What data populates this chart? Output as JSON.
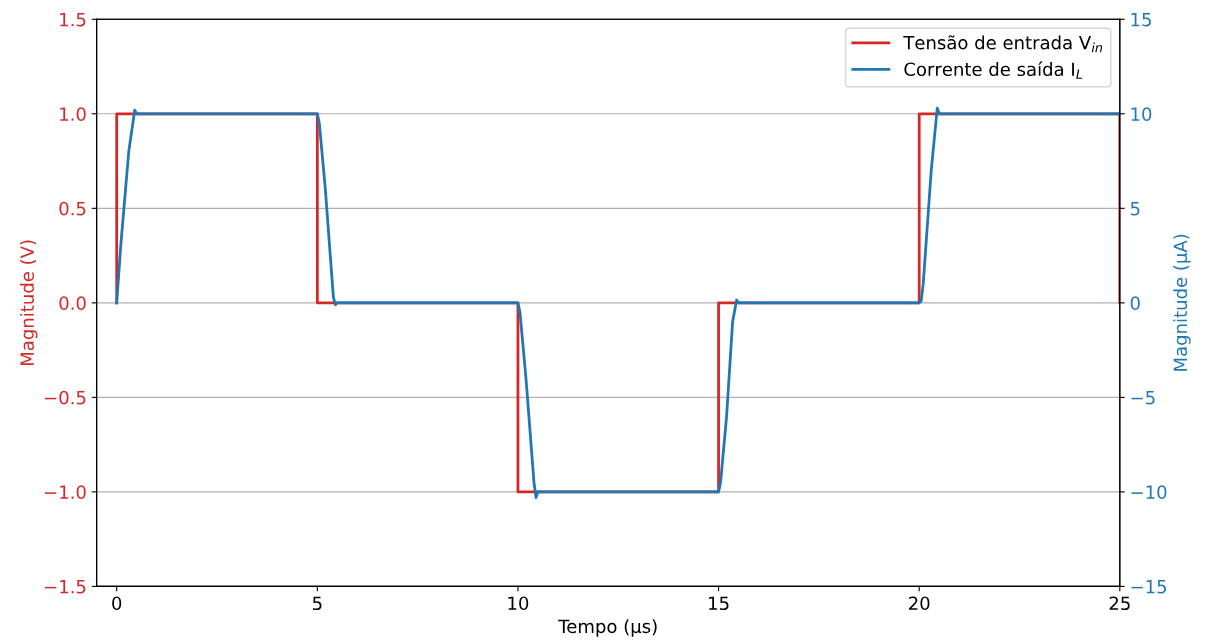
{
  "chart_data": {
    "type": "line",
    "xlabel": "Tempo (µs)",
    "ylabel": "Magnitude (V)",
    "y2label": "Magnitude (µA)",
    "xlim": [
      -0.5,
      25
    ],
    "xticks": [
      0,
      5,
      10,
      15,
      20,
      25
    ],
    "ylim": [
      -1.5,
      1.5
    ],
    "yticks": [
      {
        "value": -1.5,
        "label": "−1.5"
      },
      {
        "value": -1.0,
        "label": "−1.0"
      },
      {
        "value": -0.5,
        "label": "−0.5"
      },
      {
        "value": 0,
        "label": "0.0"
      },
      {
        "value": 0.5,
        "label": "0.5"
      },
      {
        "value": 1.0,
        "label": "1.0"
      },
      {
        "value": 1.5,
        "label": "1.5"
      }
    ],
    "y2lim": [
      -15,
      15
    ],
    "y2ticks": [
      {
        "value": -15,
        "label": "−15"
      },
      {
        "value": -10,
        "label": "−10"
      },
      {
        "value": -5,
        "label": "−5"
      },
      0,
      5,
      10,
      15
    ],
    "grid": "y",
    "legend": "top right",
    "series": [
      {
        "name": "Tensão de entrada V$_{in}$",
        "type": "step",
        "color": "#d62728",
        "x": [
          0,
          0,
          5,
          10,
          15,
          20,
          25
        ],
        "values": [
          0,
          1,
          0,
          -1,
          0,
          1,
          0
        ]
      },
      {
        "name": "Corrente de saída I$_{L}$",
        "type": "line",
        "axis": "y2",
        "color": "#1f77b4",
        "x": [
          0,
          0.1,
          0.3,
          0.45,
          0.5,
          0.55,
          5,
          5.05,
          5.2,
          5.4,
          5.45,
          5.5,
          10,
          10.05,
          10.2,
          10.4,
          10.45,
          10.5,
          15,
          15.05,
          15.2,
          15.35,
          15.45,
          15.5,
          20,
          20.05,
          20.1,
          20.3,
          20.45,
          20.5,
          25
        ],
        "values": [
          0,
          3,
          8,
          10.2,
          10,
          10,
          10,
          9.5,
          6,
          0.3,
          -0.1,
          0,
          0,
          -0.5,
          -4,
          -9.5,
          -10.3,
          -10,
          -10,
          -9.5,
          -6,
          -1,
          0.15,
          0,
          0,
          0.1,
          1,
          7,
          10.3,
          10,
          10
        ]
      }
    ]
  }
}
